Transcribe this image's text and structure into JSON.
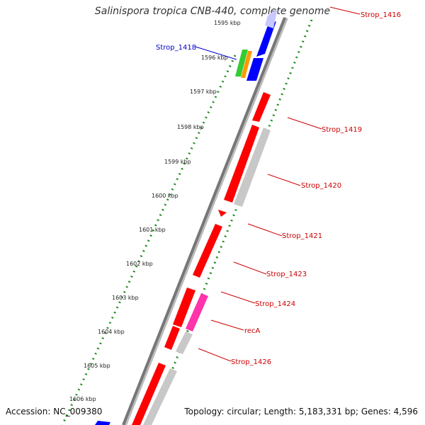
{
  "title": "Salinispora tropica CNB-440, complete genome",
  "footer": {
    "accession": "Accession: NC_009380",
    "topology": "Topology: circular; Length: 5,183,331 bp; Genes: 4,596"
  },
  "kbp_ticks": [
    "1595 kbp",
    "1596 kbp",
    "1597 kbp",
    "1598 kbp",
    "1599 kbp",
    "1600 kbp",
    "1601 kbp",
    "1602 kbp",
    "1603 kbp",
    "1604 kbp",
    "1605 kbp",
    "1606 kbp"
  ],
  "gene_labels": [
    "Strop_1416",
    "Strop_1418",
    "Strop_1419",
    "Strop_1420",
    "Strop_1421",
    "Strop_1423",
    "Strop_1424",
    "recA",
    "Strop_1426"
  ],
  "colors": {
    "forward_gene": "#ff0000",
    "reverse_gene": "#0000ff",
    "rna_gene": "#c8c8c8",
    "highlight_gene": "#ff33aa",
    "label_red": "#cc0000",
    "label_blue": "#0000cc",
    "dotted_track": "#228b22"
  }
}
